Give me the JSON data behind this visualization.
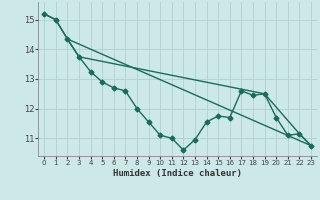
{
  "xlabel": "Humidex (Indice chaleur)",
  "background_color": "#cce8e8",
  "grid_color": "#b0d0d0",
  "line_color": "#1a6b5a",
  "xlim": [
    -0.5,
    23.5
  ],
  "ylim": [
    10.4,
    15.6
  ],
  "yticks": [
    11,
    12,
    13,
    14,
    15
  ],
  "xticks": [
    0,
    1,
    2,
    3,
    4,
    5,
    6,
    7,
    8,
    9,
    10,
    11,
    12,
    13,
    14,
    15,
    16,
    17,
    18,
    19,
    20,
    21,
    22,
    23
  ],
  "series1": [
    [
      0,
      15.2
    ],
    [
      1,
      15.0
    ],
    [
      2,
      14.35
    ],
    [
      3,
      13.75
    ],
    [
      4,
      13.25
    ],
    [
      5,
      12.9
    ],
    [
      6,
      12.7
    ],
    [
      7,
      12.6
    ],
    [
      8,
      12.0
    ],
    [
      9,
      11.55
    ],
    [
      10,
      11.1
    ],
    [
      11,
      11.0
    ],
    [
      12,
      10.6
    ],
    [
      13,
      10.95
    ],
    [
      14,
      11.55
    ],
    [
      15,
      11.75
    ],
    [
      16,
      11.7
    ],
    [
      17,
      12.6
    ],
    [
      18,
      12.45
    ],
    [
      19,
      12.5
    ],
    [
      20,
      11.7
    ],
    [
      21,
      11.1
    ],
    [
      22,
      11.15
    ],
    [
      23,
      10.75
    ]
  ],
  "series2": [
    [
      0,
      15.2
    ],
    [
      1,
      15.0
    ],
    [
      2,
      14.35
    ],
    [
      23,
      10.75
    ]
  ],
  "series3": [
    [
      2,
      14.35
    ],
    [
      3,
      13.75
    ],
    [
      19,
      12.5
    ],
    [
      22,
      11.15
    ],
    [
      23,
      10.75
    ]
  ],
  "marker_size": 2.5,
  "line_width": 1.0
}
